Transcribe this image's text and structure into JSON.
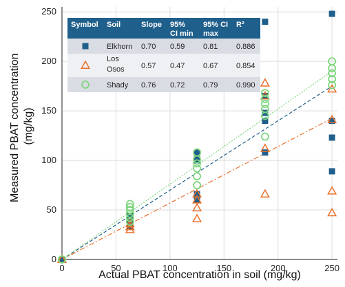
{
  "chart_data": {
    "type": "scatter",
    "xlabel": "Actual PBAT concentration in soil (mg/kg)",
    "ylabel_lines": [
      "Measured PBAT concentration",
      "(mg/kg)"
    ],
    "xlim": [
      0,
      255
    ],
    "ylim": [
      0,
      255
    ],
    "xticks": [
      0,
      50,
      100,
      150,
      200,
      250
    ],
    "yticks": [
      0,
      50,
      100,
      150,
      200,
      250
    ],
    "series": [
      {
        "name": "Elkhorn",
        "color": "#1f5f8b",
        "marker": "square",
        "line_style": "dashed",
        "slope": 0.7,
        "ci_min": 0.59,
        "ci_max": 0.81,
        "r2": 0.886,
        "points": [
          [
            0,
            0
          ],
          [
            0,
            0
          ],
          [
            63,
            33
          ],
          [
            63,
            36
          ],
          [
            63,
            40
          ],
          [
            63,
            44
          ],
          [
            125,
            60
          ],
          [
            125,
            63
          ],
          [
            125,
            66
          ],
          [
            125,
            100
          ],
          [
            125,
            104
          ],
          [
            125,
            108
          ],
          [
            188,
            108
          ],
          [
            188,
            140
          ],
          [
            188,
            148
          ],
          [
            188,
            165
          ],
          [
            188,
            240
          ],
          [
            250,
            89
          ],
          [
            250,
            123
          ],
          [
            250,
            140
          ],
          [
            250,
            248
          ]
        ]
      },
      {
        "name": "Los Osos",
        "color": "#e8702a",
        "marker": "triangle",
        "line_style": "dashdot",
        "slope": 0.57,
        "ci_min": 0.47,
        "ci_max": 0.67,
        "r2": 0.854,
        "points": [
          [
            0,
            0
          ],
          [
            0,
            0
          ],
          [
            63,
            30
          ],
          [
            63,
            33
          ],
          [
            63,
            36
          ],
          [
            125,
            41
          ],
          [
            125,
            52
          ],
          [
            125,
            60
          ],
          [
            125,
            66
          ],
          [
            188,
            66
          ],
          [
            188,
            112
          ],
          [
            188,
            165
          ],
          [
            188,
            178
          ],
          [
            250,
            47
          ],
          [
            250,
            69
          ],
          [
            250,
            141
          ],
          [
            250,
            172
          ]
        ]
      },
      {
        "name": "Shady",
        "color": "#7fd67f",
        "marker": "circle",
        "line_style": "dotted",
        "slope": 0.76,
        "ci_min": 0.72,
        "ci_max": 0.79,
        "r2": 0.99,
        "points": [
          [
            0,
            0
          ],
          [
            0,
            0
          ],
          [
            63,
            38
          ],
          [
            63,
            42
          ],
          [
            63,
            46
          ],
          [
            63,
            50
          ],
          [
            63,
            53
          ],
          [
            63,
            56
          ],
          [
            125,
            75
          ],
          [
            125,
            84
          ],
          [
            125,
            92
          ],
          [
            125,
            97
          ],
          [
            125,
            101
          ],
          [
            125,
            108
          ],
          [
            188,
            124
          ],
          [
            188,
            145
          ],
          [
            188,
            152
          ],
          [
            188,
            157
          ],
          [
            188,
            162
          ],
          [
            188,
            168
          ],
          [
            250,
            176
          ],
          [
            250,
            182
          ],
          [
            250,
            188
          ],
          [
            250,
            193
          ],
          [
            250,
            200
          ]
        ]
      }
    ],
    "legend_table": {
      "headers": [
        "Symbol",
        "Soil",
        "Slope",
        "95% CI min",
        "95% CI max",
        "R²"
      ],
      "header_lines": [
        [
          "Symbol"
        ],
        [
          "Soil"
        ],
        [
          "Slope"
        ],
        [
          "95%",
          "CI min"
        ],
        [
          "95% CI",
          "max"
        ],
        [
          "R²"
        ]
      ],
      "rows": [
        {
          "soil_lines": [
            "Elkhorn"
          ],
          "slope": "0.70",
          "ci_min": "0.59",
          "ci_max": "0.81",
          "r2": "0.886"
        },
        {
          "soil_lines": [
            "Los",
            "Osos"
          ],
          "slope": "0.57",
          "ci_min": "0.47",
          "ci_max": "0.67",
          "r2": "0.854"
        },
        {
          "soil_lines": [
            "Shady"
          ],
          "slope": "0.76",
          "ci_min": "0.72",
          "ci_max": "0.79",
          "r2": "0.990"
        }
      ],
      "header_color": "#1f5f8b",
      "row_color_a": "#d9dde3",
      "row_color_b": "#eef0f3"
    }
  }
}
